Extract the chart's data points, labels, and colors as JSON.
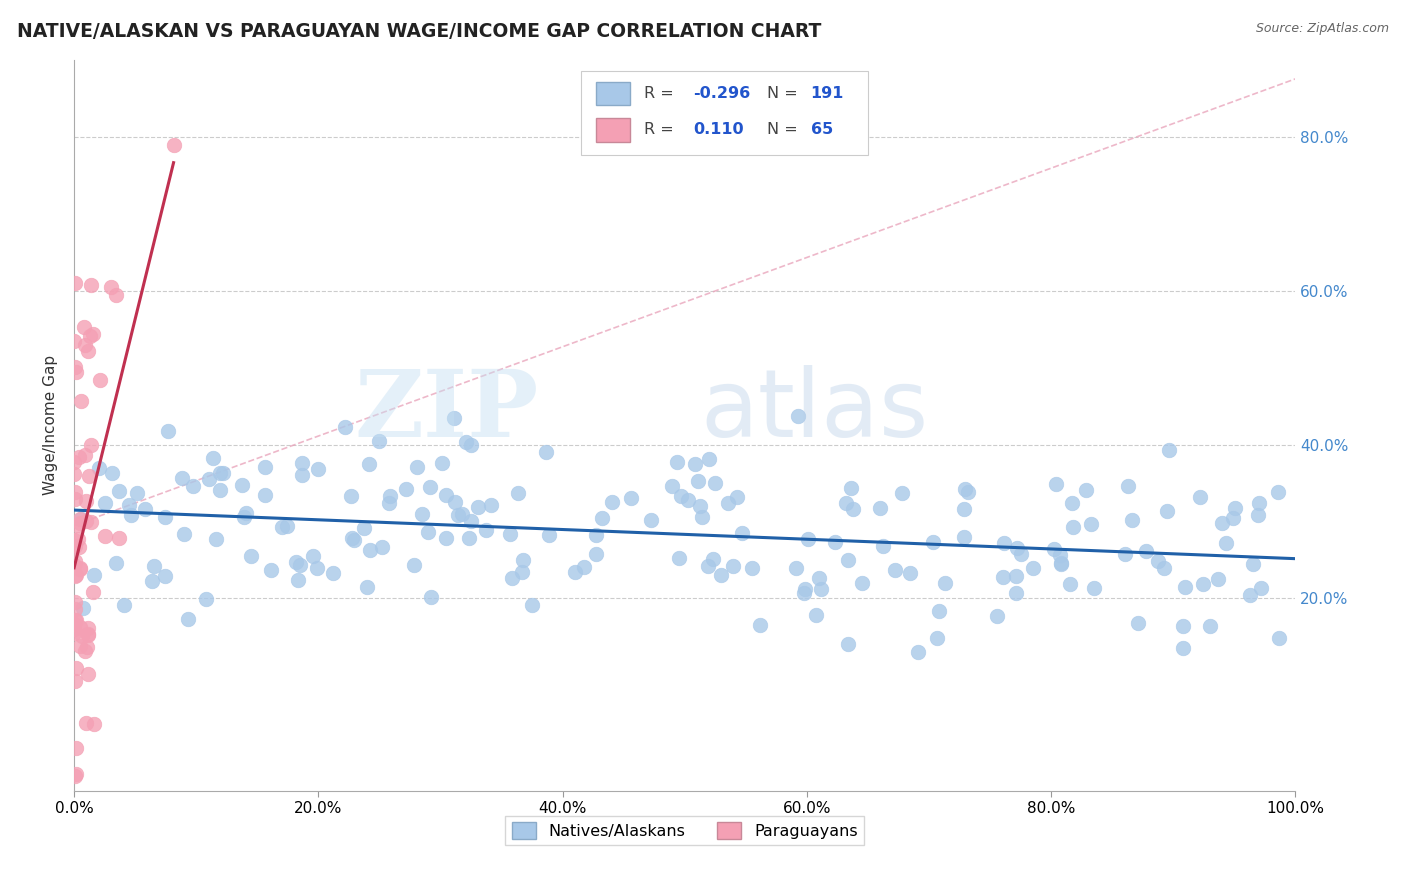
{
  "title": "NATIVE/ALASKAN VS PARAGUAYAN WAGE/INCOME GAP CORRELATION CHART",
  "source": "Source: ZipAtlas.com",
  "ylabel": "Wage/Income Gap",
  "y_ticks": [
    0.2,
    0.4,
    0.6,
    0.8
  ],
  "y_tick_labels": [
    "20.0%",
    "40.0%",
    "60.0%",
    "80.0%"
  ],
  "xlim": [
    0.0,
    1.0
  ],
  "ylim": [
    -0.05,
    0.9
  ],
  "legend_blue_r": "-0.296",
  "legend_blue_n": "191",
  "legend_pink_r": "0.110",
  "legend_pink_n": "65",
  "blue_color": "#a8c8e8",
  "pink_color": "#f4a0b4",
  "blue_line_color": "#2060a8",
  "pink_line_color": "#c03050",
  "diagonal_color": "#e8a0b8",
  "background_color": "#ffffff",
  "grid_color": "#cccccc",
  "blue_r": -0.296,
  "pink_r": 0.11,
  "N_blue": 191,
  "N_pink": 65
}
